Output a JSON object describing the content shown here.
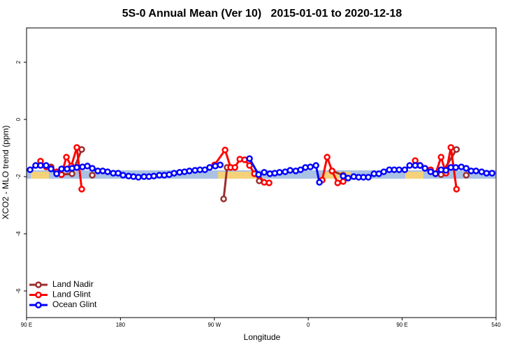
{
  "chart_data": {
    "type": "line",
    "title": "5S-0 Annual Mean (Ver 10)   2015-01-01 to 2020-12-18",
    "xlabel": "Longitude",
    "ylabel": "XCO2 - MLO trend (ppm)",
    "xlim": [
      90,
      540
    ],
    "ylim": [
      -6.93,
      3.2
    ],
    "xticks": [
      {
        "value": 90,
        "label": "90 E"
      },
      180,
      {
        "value": 270,
        "label": "90 W"
      },
      {
        "value": 360,
        "label": "0"
      },
      {
        "value": 450,
        "label": "90 E"
      },
      540
    ],
    "yticks": [
      2,
      0,
      -2,
      -4,
      -6
    ],
    "legend": "bottom-left",
    "series": [
      {
        "name": "Land Nadir",
        "color": "#9b2d2d",
        "x": [
          113.5,
          118.8,
          123.5,
          133.6,
          142.9,
          null,
          153,
          null,
          278.9,
          282.2,
          null,
          313,
          null,
          382.8,
          393.5,
          null,
          467.2,
          487.3,
          502.1,
          null,
          511.4
        ],
        "values": [
          -1.66,
          -1.9,
          -1.93,
          -1.9,
          -1.05,
          null,
          -1.95,
          null,
          -2.78,
          -1.68,
          null,
          -2.15,
          null,
          -1.8,
          -1.95,
          null,
          -1.61,
          -1.93,
          -1.05,
          null,
          -1.95
        ]
      },
      {
        "name": "Land Glint",
        "color": "#ff0000",
        "x": [
          103.4,
          108.8,
          113.5,
          118.8,
          123.5,
          128.2,
          132.9,
          138.2,
          142.9,
          null,
          270.2,
          280.3,
          285.6,
          289.7,
          294.4,
          299,
          303.7,
          308.4,
          312.4,
          317.8,
          322.5,
          null,
          373.4,
          378.1,
          382.8,
          388.2,
          393.5,
          null,
          462.5,
          467.2,
          471.9,
          477.3,
          482,
          487.3,
          492,
          496.7,
          502.1
        ],
        "values": [
          -1.46,
          -1.66,
          -1.71,
          -1.83,
          -1.93,
          -1.32,
          -1.63,
          -0.98,
          -2.44,
          null,
          -1.59,
          -1.07,
          -1.68,
          -1.68,
          -1.39,
          -1.41,
          -1.61,
          -1.9,
          -1.95,
          -2.2,
          -2.22,
          null,
          -2.12,
          -1.32,
          -1.8,
          -2.22,
          -2.17,
          null,
          -1.44,
          -1.61,
          -1.71,
          -1.76,
          -1.9,
          -1.32,
          -1.88,
          -0.98,
          -2.44
        ]
      },
      {
        "name": "Ocean Glint",
        "color": "#0000ff",
        "x": [
          93.4,
          98.7,
          103.4,
          108.8,
          113.5,
          118.8,
          123.5,
          128.9,
          133.6,
          138.2,
          143.6,
          148.3,
          153,
          158.3,
          163,
          167.7,
          173.1,
          177.8,
          182.5,
          187.8,
          192.5,
          197.2,
          202.6,
          207.3,
          212,
          217.3,
          222,
          226.7,
          231.4,
          236.7,
          241.4,
          246.1,
          251.5,
          256.2,
          260.9,
          265.5,
          270.9,
          275.6,
          null,
          303.7,
          312.4,
          317.8,
          323.2,
          327.9,
          332.5,
          337.9,
          342.6,
          348,
          352.6,
          357.3,
          362,
          367.4,
          370.7,
          null,
          393.5,
          398.2,
          403.6,
          408.3,
          412.9,
          417.6,
          423,
          427.7,
          432.4,
          437.7,
          442.4,
          447.1,
          452.5,
          457.2,
          462.5,
          467.2,
          471.9,
          477.3,
          482,
          487.3,
          492,
          496.7,
          501.4,
          506.7,
          511.4,
          516.1,
          520.8,
          526.2,
          530.9,
          536.2
        ],
        "values": [
          -1.76,
          -1.61,
          -1.61,
          -1.61,
          -1.73,
          -1.9,
          -1.73,
          -1.73,
          -1.71,
          -1.68,
          -1.66,
          -1.63,
          -1.71,
          -1.8,
          -1.8,
          -1.83,
          -1.88,
          -1.88,
          -1.95,
          -1.98,
          -2,
          -2.02,
          -2,
          -2,
          -1.98,
          -1.95,
          -1.95,
          -1.93,
          -1.88,
          -1.85,
          -1.83,
          -1.8,
          -1.78,
          -1.76,
          -1.76,
          -1.68,
          -1.63,
          -1.59,
          null,
          -1.37,
          -1.93,
          -1.85,
          -1.9,
          -1.88,
          -1.85,
          -1.83,
          -1.78,
          -1.8,
          -1.76,
          -1.68,
          -1.66,
          -1.61,
          -2.2,
          null,
          -1.98,
          -2.05,
          -2,
          -2.02,
          -2.02,
          -2.02,
          -1.9,
          -1.9,
          -1.83,
          -1.76,
          -1.76,
          -1.76,
          -1.76,
          -1.61,
          -1.61,
          -1.61,
          -1.71,
          -1.83,
          -1.9,
          -1.76,
          -1.78,
          -1.68,
          -1.68,
          -1.66,
          -1.71,
          -1.8,
          -1.8,
          -1.83,
          -1.88,
          -1.88
        ]
      }
    ]
  }
}
